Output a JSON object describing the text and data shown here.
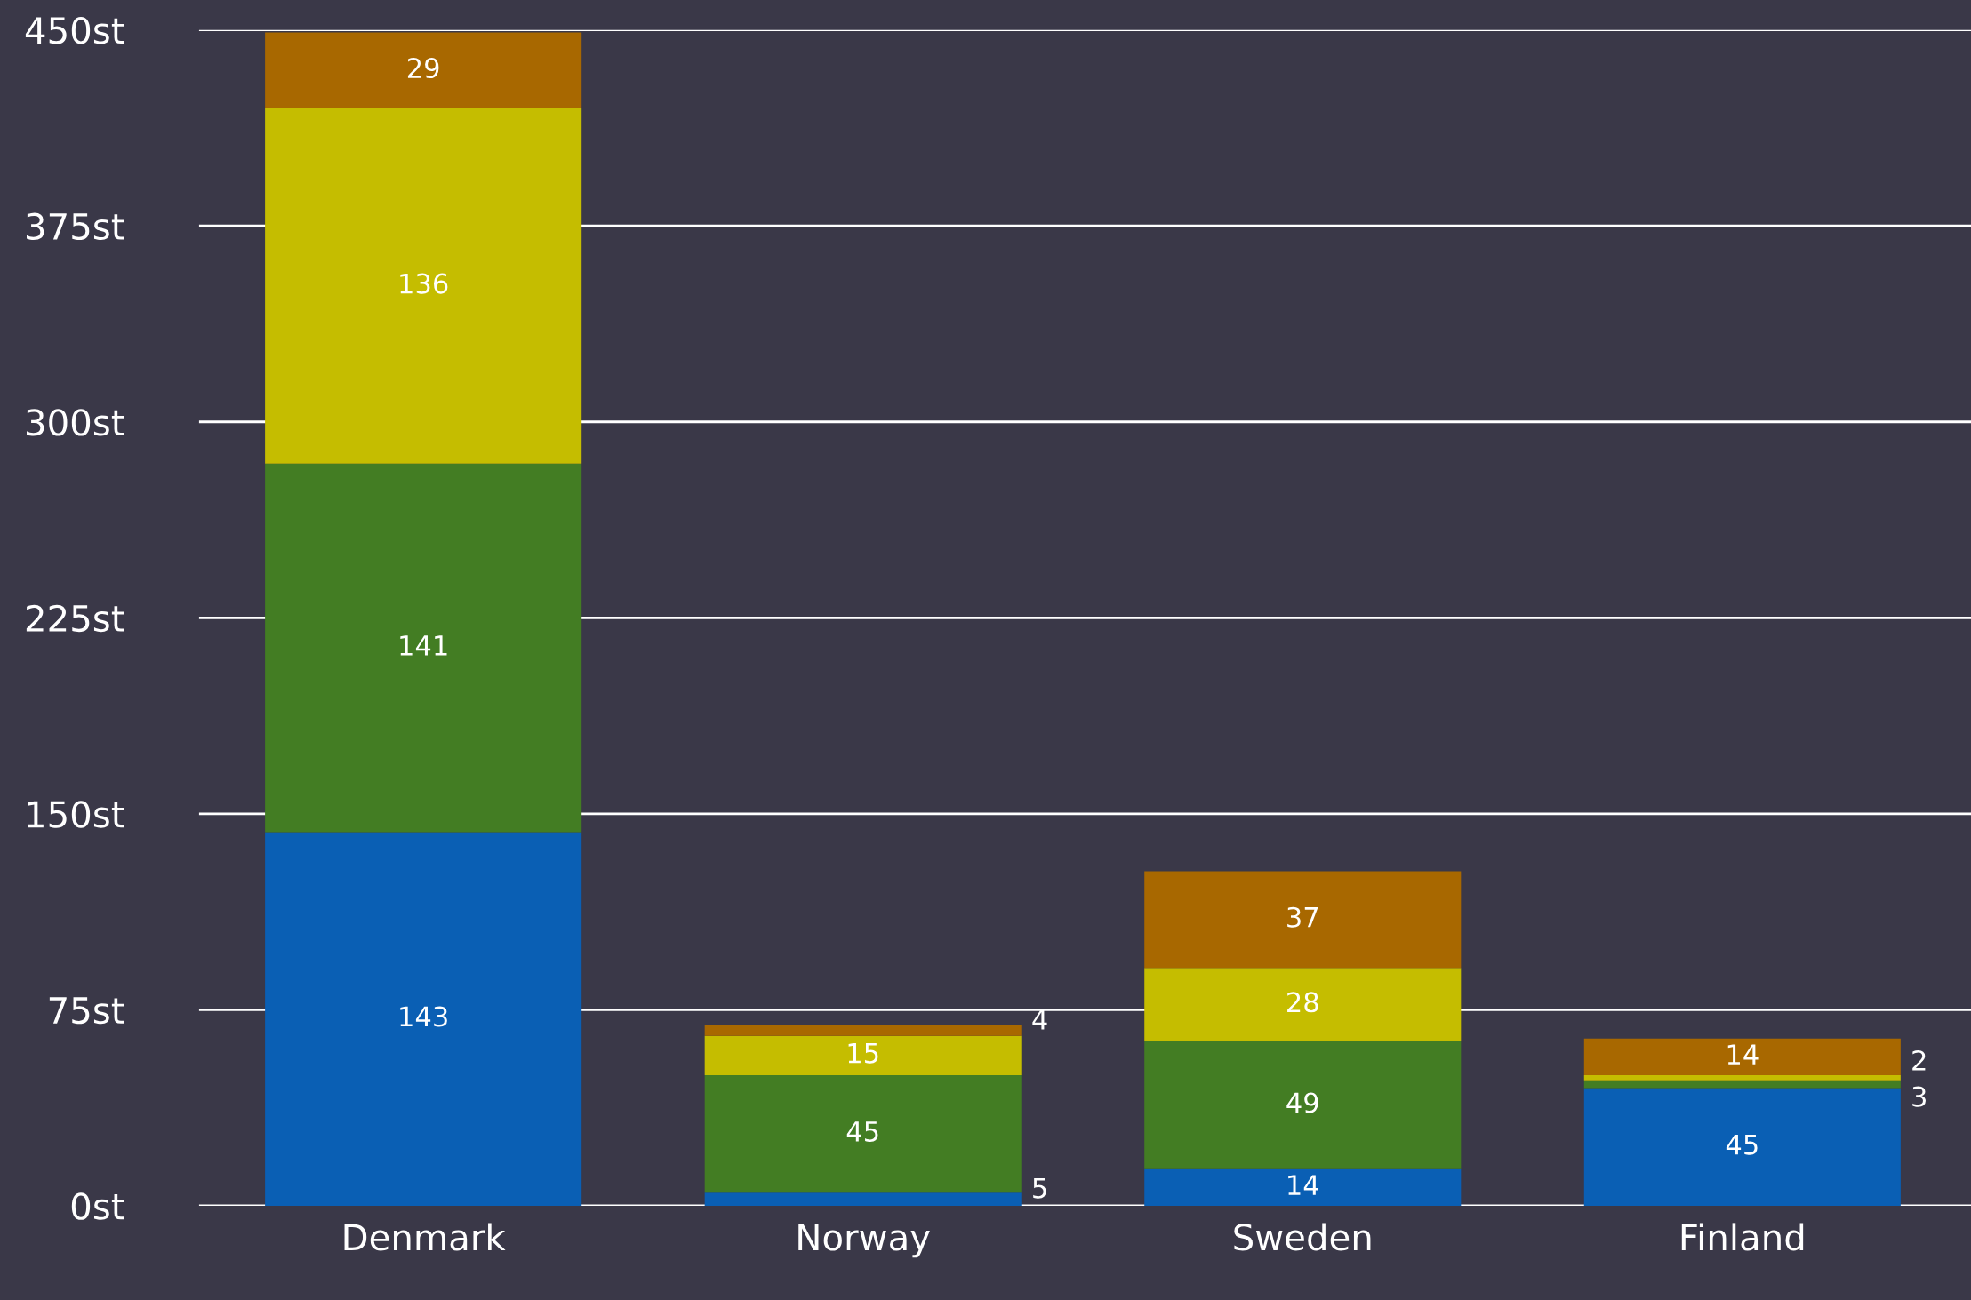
{
  "chart_data": {
    "type": "bar",
    "stacked": true,
    "categories": [
      "Denmark",
      "Norway",
      "Sweden",
      "Finland"
    ],
    "series": [
      {
        "color": "#0a5fb4",
        "values": [
          143,
          5,
          14,
          45
        ]
      },
      {
        "color": "#437d23",
        "values": [
          141,
          45,
          49,
          3
        ]
      },
      {
        "color": "#c5bd00",
        "values": [
          136,
          15,
          28,
          2
        ]
      },
      {
        "color": "#a86800",
        "values": [
          29,
          4,
          37,
          14
        ]
      }
    ],
    "data_labels": true,
    "ylim": [
      0,
      450
    ],
    "yticks": [
      {
        "value": 0,
        "label": "0st"
      },
      {
        "value": 75,
        "label": "75st"
      },
      {
        "value": 150,
        "label": "150st"
      },
      {
        "value": 225,
        "label": "225st"
      },
      {
        "value": 300,
        "label": "300st"
      },
      {
        "value": 375,
        "label": "375st"
      },
      {
        "value": 450,
        "label": "450st"
      }
    ],
    "grid": "y",
    "legend": false
  }
}
